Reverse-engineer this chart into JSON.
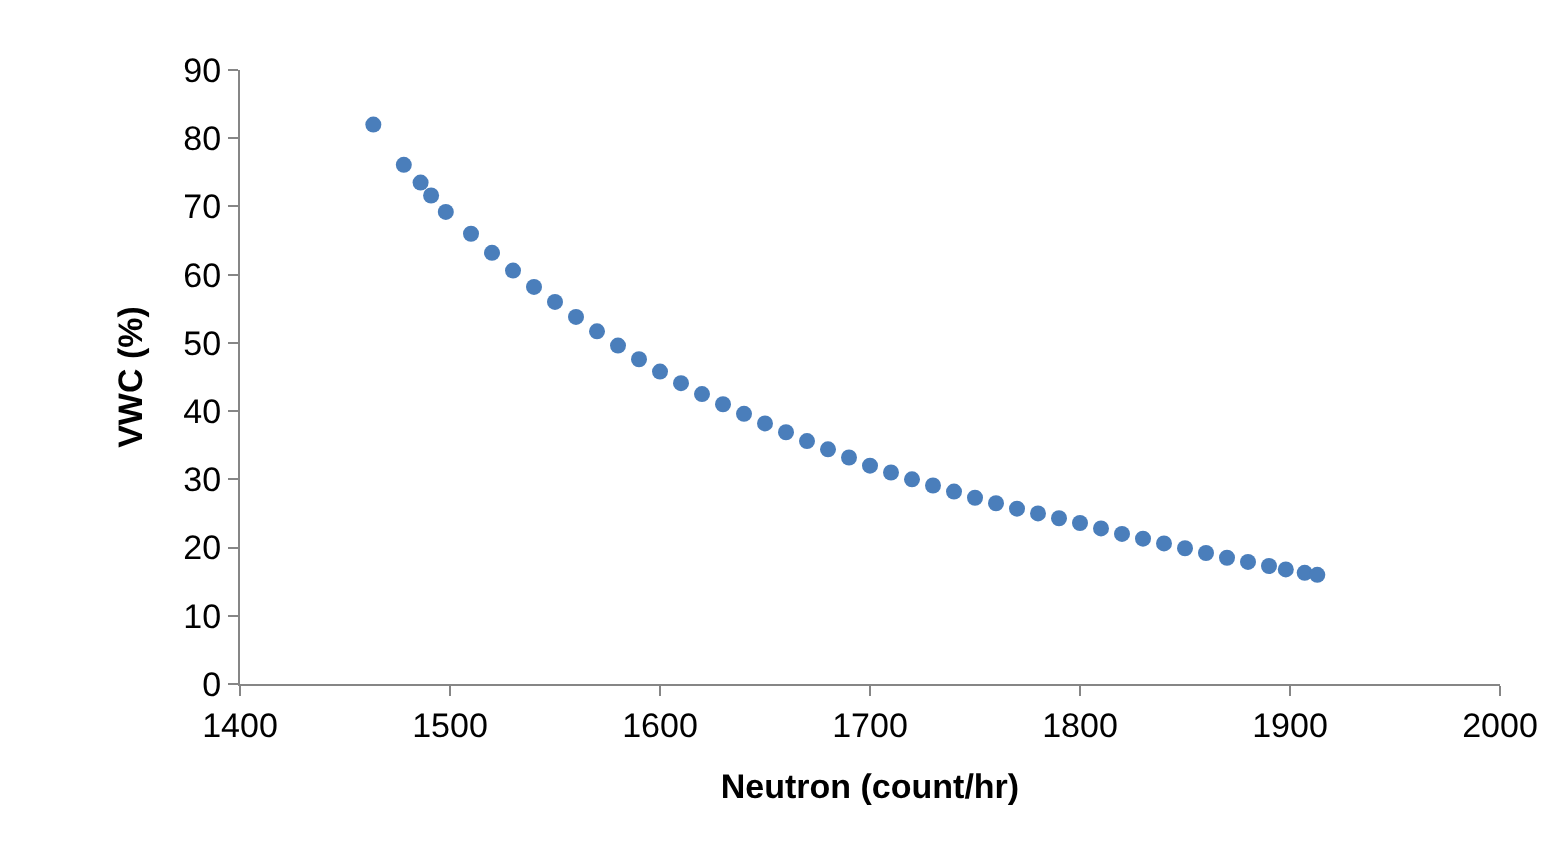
{
  "chart_data": {
    "type": "scatter",
    "xlabel": "Neutron (count/hr)",
    "ylabel": "VWC (%)",
    "xlim": [
      1400,
      2000
    ],
    "xticks": [
      1400,
      1500,
      1600,
      1700,
      1800,
      1900,
      2000
    ],
    "ylim": [
      0,
      90
    ],
    "yticks": [
      0,
      10,
      20,
      30,
      40,
      50,
      60,
      70,
      80,
      90
    ],
    "marker": "circle",
    "x": [
      1463.5,
      1478,
      1486,
      1491,
      1498,
      1510,
      1520,
      1530,
      1540,
      1550,
      1560,
      1570,
      1580,
      1590,
      1600,
      1610,
      1620,
      1630,
      1640,
      1650,
      1660,
      1670,
      1680,
      1690,
      1700,
      1710,
      1720,
      1730,
      1740,
      1750,
      1760,
      1770,
      1780,
      1790,
      1800,
      1810,
      1820,
      1830,
      1840,
      1850,
      1860,
      1870,
      1880,
      1890,
      1898,
      1907,
      1913
    ],
    "series": [
      {
        "color": "#4a7ebb",
        "values": [
          82.0,
          76.1,
          73.5,
          71.6,
          69.2,
          66.0,
          63.2,
          60.6,
          58.2,
          56.0,
          53.8,
          51.7,
          49.6,
          47.6,
          45.8,
          44.1,
          42.5,
          41.0,
          39.6,
          38.2,
          36.9,
          35.6,
          34.4,
          33.2,
          32.0,
          31.0,
          30.0,
          29.1,
          28.2,
          27.3,
          26.5,
          25.7,
          25.0,
          24.3,
          23.6,
          22.8,
          22.0,
          21.3,
          20.6,
          19.9,
          19.2,
          18.5,
          17.9,
          17.3,
          16.8,
          16.3,
          16.0
        ]
      }
    ]
  }
}
